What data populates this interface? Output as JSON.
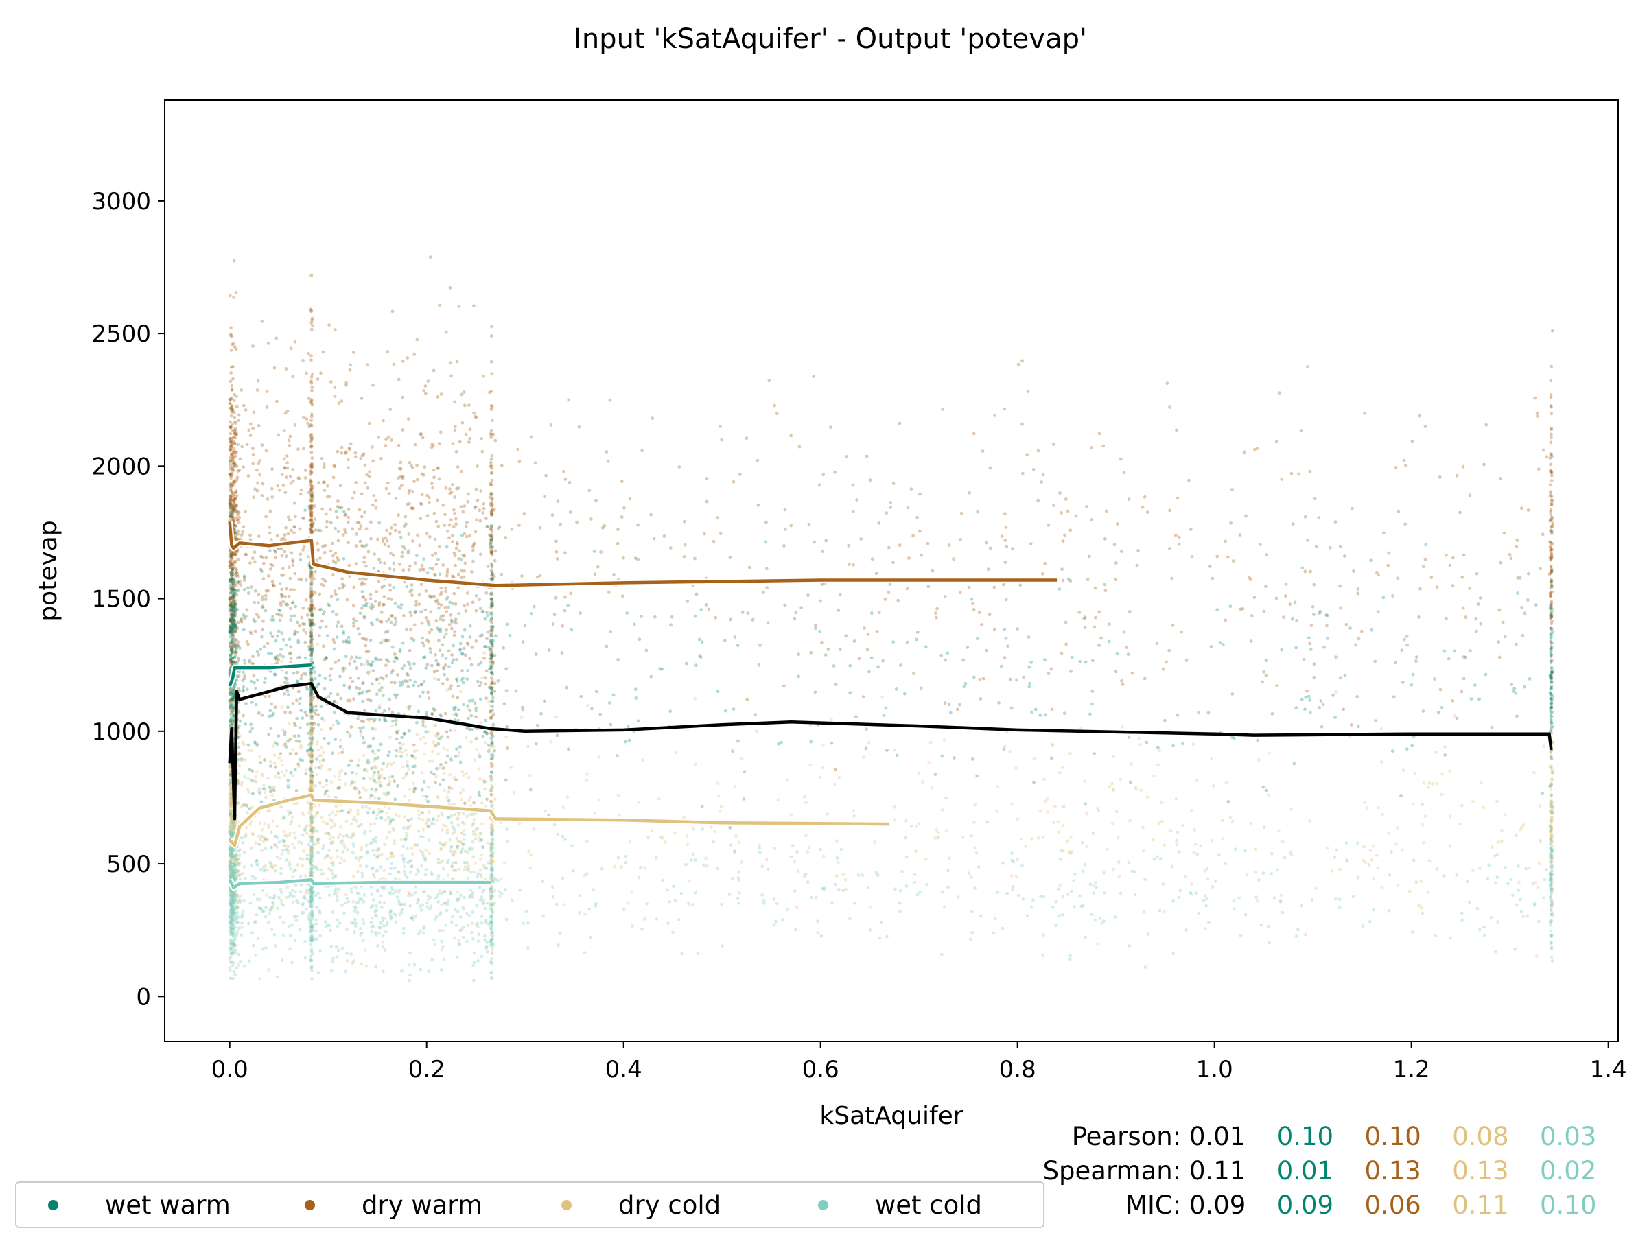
{
  "chart_data": {
    "type": "scatter",
    "title": "Input 'kSatAquifer' - Output 'potevap'",
    "xlabel": "kSatAquifer",
    "ylabel": "potevap",
    "xlim": [
      -0.066,
      1.41
    ],
    "ylim": [
      -170,
      3380
    ],
    "xticks": [
      0.0,
      0.2,
      0.4,
      0.6,
      0.8,
      1.0,
      1.2,
      1.4
    ],
    "xtick_labels": [
      "0.0",
      "0.2",
      "0.4",
      "0.6",
      "0.8",
      "1.0",
      "1.2",
      "1.4"
    ],
    "yticks": [
      0,
      500,
      1000,
      1500,
      2000,
      2500,
      3000
    ],
    "ytick_labels": [
      "0",
      "500",
      "1000",
      "1500",
      "2000",
      "2500",
      "3000"
    ],
    "grid": false,
    "legend_position": "bottom-left",
    "series": [
      {
        "name": "wet warm",
        "color": "#018571",
        "trend": [
          [
            0.0,
            1170
          ],
          [
            0.003,
            1200
          ],
          [
            0.005,
            1240
          ],
          [
            0.04,
            1240
          ],
          [
            0.083,
            1250
          ]
        ]
      },
      {
        "name": "dry warm",
        "color": "#a6611a",
        "trend": [
          [
            0.0,
            1790
          ],
          [
            0.002,
            1700
          ],
          [
            0.004,
            1690
          ],
          [
            0.01,
            1710
          ],
          [
            0.04,
            1700
          ],
          [
            0.083,
            1720
          ],
          [
            0.085,
            1630
          ],
          [
            0.12,
            1600
          ],
          [
            0.2,
            1570
          ],
          [
            0.27,
            1550
          ],
          [
            0.4,
            1560
          ],
          [
            0.6,
            1570
          ],
          [
            0.84,
            1570
          ]
        ]
      },
      {
        "name": "dry cold",
        "color": "#dfc27d",
        "trend": [
          [
            0.0,
            590
          ],
          [
            0.005,
            570
          ],
          [
            0.01,
            640
          ],
          [
            0.03,
            710
          ],
          [
            0.06,
            740
          ],
          [
            0.083,
            760
          ],
          [
            0.085,
            740
          ],
          [
            0.15,
            730
          ],
          [
            0.265,
            700
          ],
          [
            0.27,
            670
          ],
          [
            0.4,
            665
          ],
          [
            0.5,
            655
          ],
          [
            0.67,
            650
          ]
        ]
      },
      {
        "name": "wet cold",
        "color": "#80cdc1",
        "trend": [
          [
            0.0,
            440
          ],
          [
            0.004,
            410
          ],
          [
            0.01,
            425
          ],
          [
            0.05,
            430
          ],
          [
            0.083,
            440
          ],
          [
            0.085,
            425
          ],
          [
            0.15,
            430
          ],
          [
            0.265,
            430
          ]
        ]
      },
      {
        "name": "",
        "color": "#000000",
        "trend": [
          [
            0.0,
            880
          ],
          [
            0.002,
            1010
          ],
          [
            0.005,
            670
          ],
          [
            0.007,
            1150
          ],
          [
            0.01,
            1120
          ],
          [
            0.02,
            1130
          ],
          [
            0.04,
            1150
          ],
          [
            0.06,
            1170
          ],
          [
            0.083,
            1180
          ],
          [
            0.09,
            1130
          ],
          [
            0.12,
            1070
          ],
          [
            0.2,
            1050
          ],
          [
            0.265,
            1010
          ],
          [
            0.3,
            1000
          ],
          [
            0.4,
            1005
          ],
          [
            0.5,
            1025
          ],
          [
            0.57,
            1035
          ],
          [
            0.7,
            1020
          ],
          [
            0.8,
            1005
          ],
          [
            1.0,
            990
          ],
          [
            1.04,
            985
          ],
          [
            1.2,
            990
          ],
          [
            1.34,
            990
          ],
          [
            1.342,
            930
          ]
        ]
      }
    ]
  },
  "stats": {
    "pearson_label": "Pearson:",
    "spearman_label": "Spearman:",
    "mic_label": "MIC:",
    "pearson": [
      "0.01",
      "0.10",
      "0.10",
      "0.08",
      "0.03"
    ],
    "spearman": [
      "0.11",
      "0.01",
      "0.13",
      "0.13",
      "0.02"
    ],
    "mic": [
      "0.09",
      "0.09",
      "0.06",
      "0.11",
      "0.10"
    ],
    "colors": [
      "#000000",
      "#018571",
      "#a6611a",
      "#dfc27d",
      "#80cdc1"
    ]
  },
  "legend": {
    "items": [
      {
        "label": "wet warm",
        "color": "#018571"
      },
      {
        "label": "dry warm",
        "color": "#a6611a"
      },
      {
        "label": "dry cold",
        "color": "#dfc27d"
      },
      {
        "label": "wet cold",
        "color": "#80cdc1"
      }
    ]
  }
}
